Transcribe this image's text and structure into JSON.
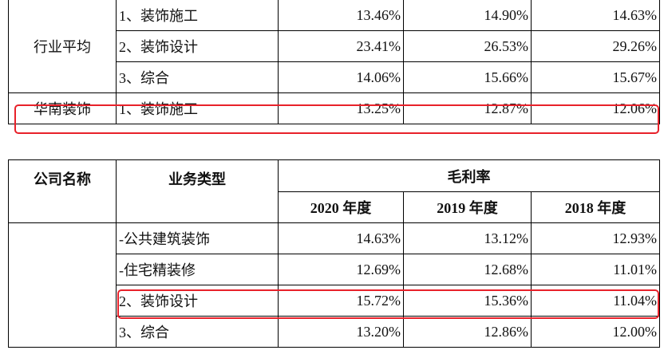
{
  "table1": {
    "groups": [
      {
        "name": "行业平均",
        "rows": [
          [
            "1、装饰施工",
            "13.46%",
            "14.90%",
            "14.63%"
          ],
          [
            "2、装饰设计",
            "23.41%",
            "26.53%",
            "29.26%"
          ],
          [
            "3、综合",
            "14.06%",
            "15.66%",
            "15.67%"
          ]
        ]
      },
      {
        "name": "华南装饰",
        "rows": [
          [
            "1、装饰施工",
            "13.25%",
            "12.87%",
            "12.06%"
          ]
        ]
      }
    ]
  },
  "table2": {
    "header": {
      "company": "公司名称",
      "type": "业务类型",
      "metric": "毛利率",
      "years": [
        "2020 年度",
        "2019 年度",
        "2018 年度"
      ]
    },
    "rows": [
      [
        "-公共建筑装饰",
        "14.63%",
        "13.12%",
        "12.93%"
      ],
      [
        "-住宅精装修",
        "12.69%",
        "12.68%",
        "11.01%"
      ],
      [
        "2、装饰设计",
        "15.72%",
        "15.36%",
        "11.04%"
      ],
      [
        "3、综合",
        "13.20%",
        "12.86%",
        "12.00%"
      ]
    ]
  }
}
